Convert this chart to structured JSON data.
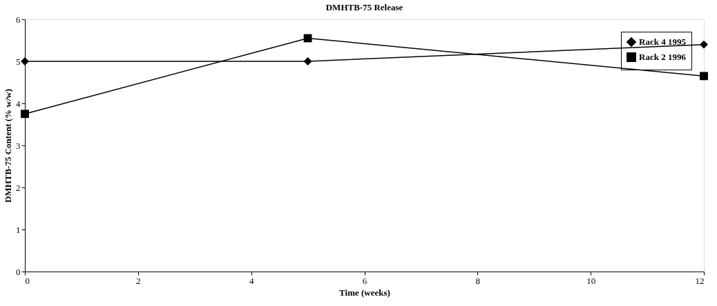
{
  "chart_data": {
    "type": "line",
    "title": "DMHTB-75 Release",
    "xlabel": "Time (weeks)",
    "ylabel": "DMHTB-75 Content (% w/w)",
    "x": [
      0,
      5,
      12
    ],
    "series": [
      {
        "name": "Rack 4 1995",
        "color": "#000000",
        "marker": "diamond",
        "values": [
          5.0,
          5.0,
          5.4
        ]
      },
      {
        "name": "Rack 2 1996",
        "color": "#000000",
        "marker": "square",
        "values": [
          3.75,
          5.55,
          4.65
        ]
      }
    ],
    "xlim": [
      0,
      12
    ],
    "xticks": [
      0,
      2,
      4,
      6,
      8,
      10,
      12
    ],
    "ylim": [
      0,
      6
    ],
    "yticks": [
      0,
      1,
      2,
      3,
      4,
      5,
      6
    ],
    "grid": false,
    "legend": "top right",
    "line_style": "solid"
  }
}
